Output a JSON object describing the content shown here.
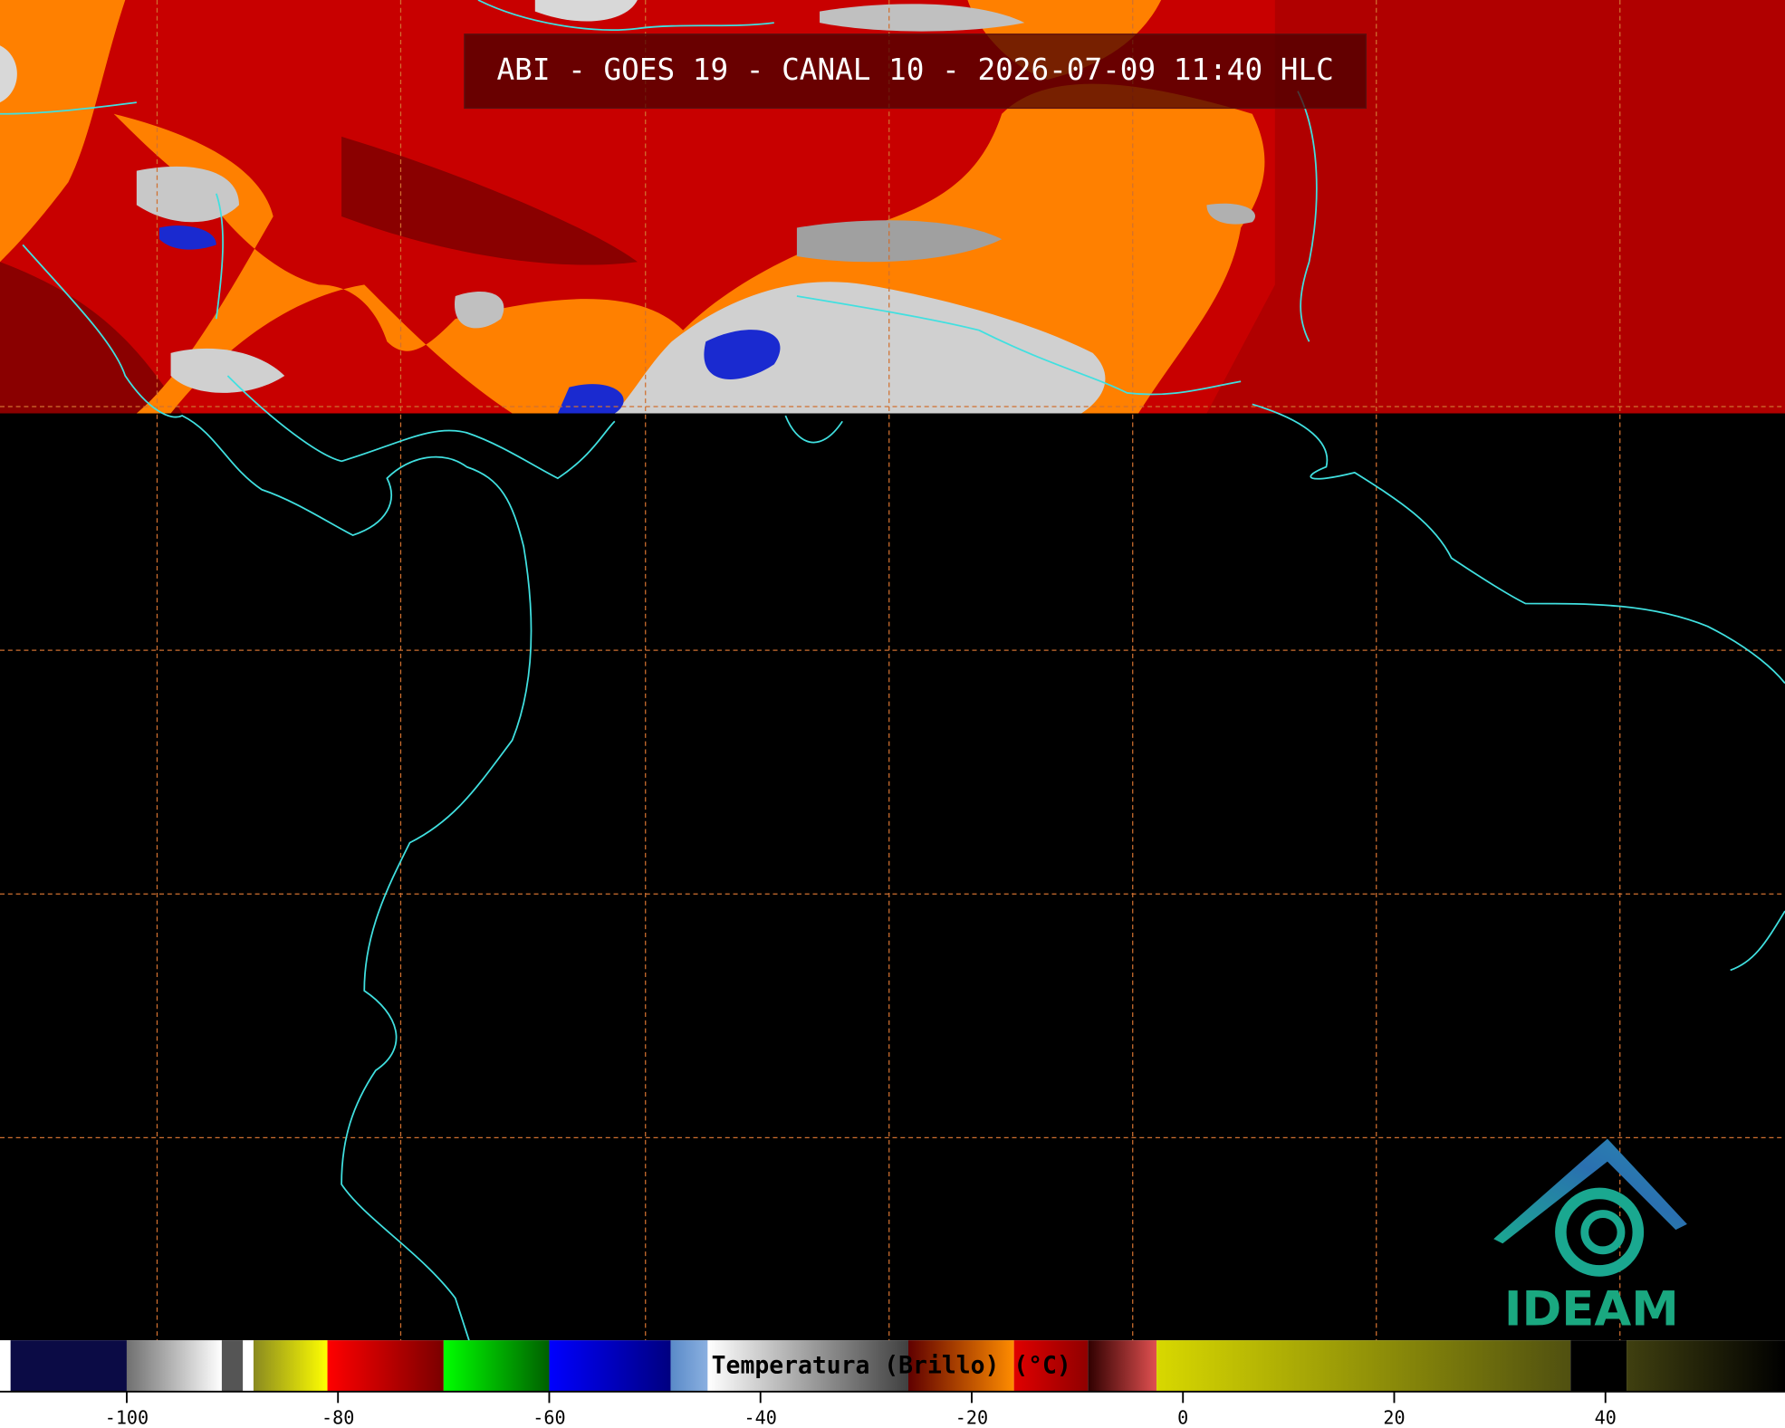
{
  "header": {
    "title": "ABI - GOES 19 - CANAL 10 - 2026-07-09 11:40 HLC"
  },
  "colorbar": {
    "label": "Temperatura (Brillo) (°C)",
    "range": [
      -112,
      57
    ],
    "ticks": [
      -100,
      -80,
      -60,
      -40,
      -20,
      0,
      20,
      40
    ],
    "segments": [
      {
        "from": -112,
        "to": -111,
        "colors": [
          "#ffffff",
          "#ffffff"
        ]
      },
      {
        "from": -111,
        "to": -100,
        "colors": [
          "#0b0b45",
          "#0b0b45"
        ]
      },
      {
        "from": -100,
        "to": -91,
        "colors": [
          "#707070",
          "#ffffff"
        ]
      },
      {
        "from": -91,
        "to": -89,
        "colors": [
          "#555555",
          "#555555"
        ]
      },
      {
        "from": -89,
        "to": -88,
        "colors": [
          "#ffffff",
          "#ffffff"
        ]
      },
      {
        "from": -88,
        "to": -81,
        "colors": [
          "#8a8a20",
          "#ffff00"
        ]
      },
      {
        "from": -81,
        "to": -70,
        "colors": [
          "#ff0000",
          "#7a0000"
        ]
      },
      {
        "from": -70,
        "to": -60,
        "colors": [
          "#00ff00",
          "#006000"
        ]
      },
      {
        "from": -60,
        "to": -48.5,
        "colors": [
          "#0000ff",
          "#000080"
        ]
      },
      {
        "from": -48.5,
        "to": -45,
        "colors": [
          "#5a8ac8",
          "#8ab0e0"
        ]
      },
      {
        "from": -45,
        "to": -26,
        "colors": [
          "#ffffff",
          "#404040"
        ]
      },
      {
        "from": -26,
        "to": -16,
        "colors": [
          "#600000",
          "#ff8c00"
        ]
      },
      {
        "from": -16,
        "to": -9,
        "colors": [
          "#e00000",
          "#900000"
        ]
      },
      {
        "from": -9,
        "to": -2.5,
        "colors": [
          "#300000",
          "#e05050"
        ]
      },
      {
        "from": -2.5,
        "to": 36.7,
        "colors": [
          "#d8d800",
          "#505010"
        ]
      },
      {
        "from": 36.7,
        "to": 42,
        "colors": [
          "#000000",
          "#000000"
        ]
      },
      {
        "from": 42,
        "to": 57,
        "colors": [
          "#404010",
          "#000000"
        ]
      }
    ]
  },
  "logo": {
    "text": "IDEAM"
  }
}
